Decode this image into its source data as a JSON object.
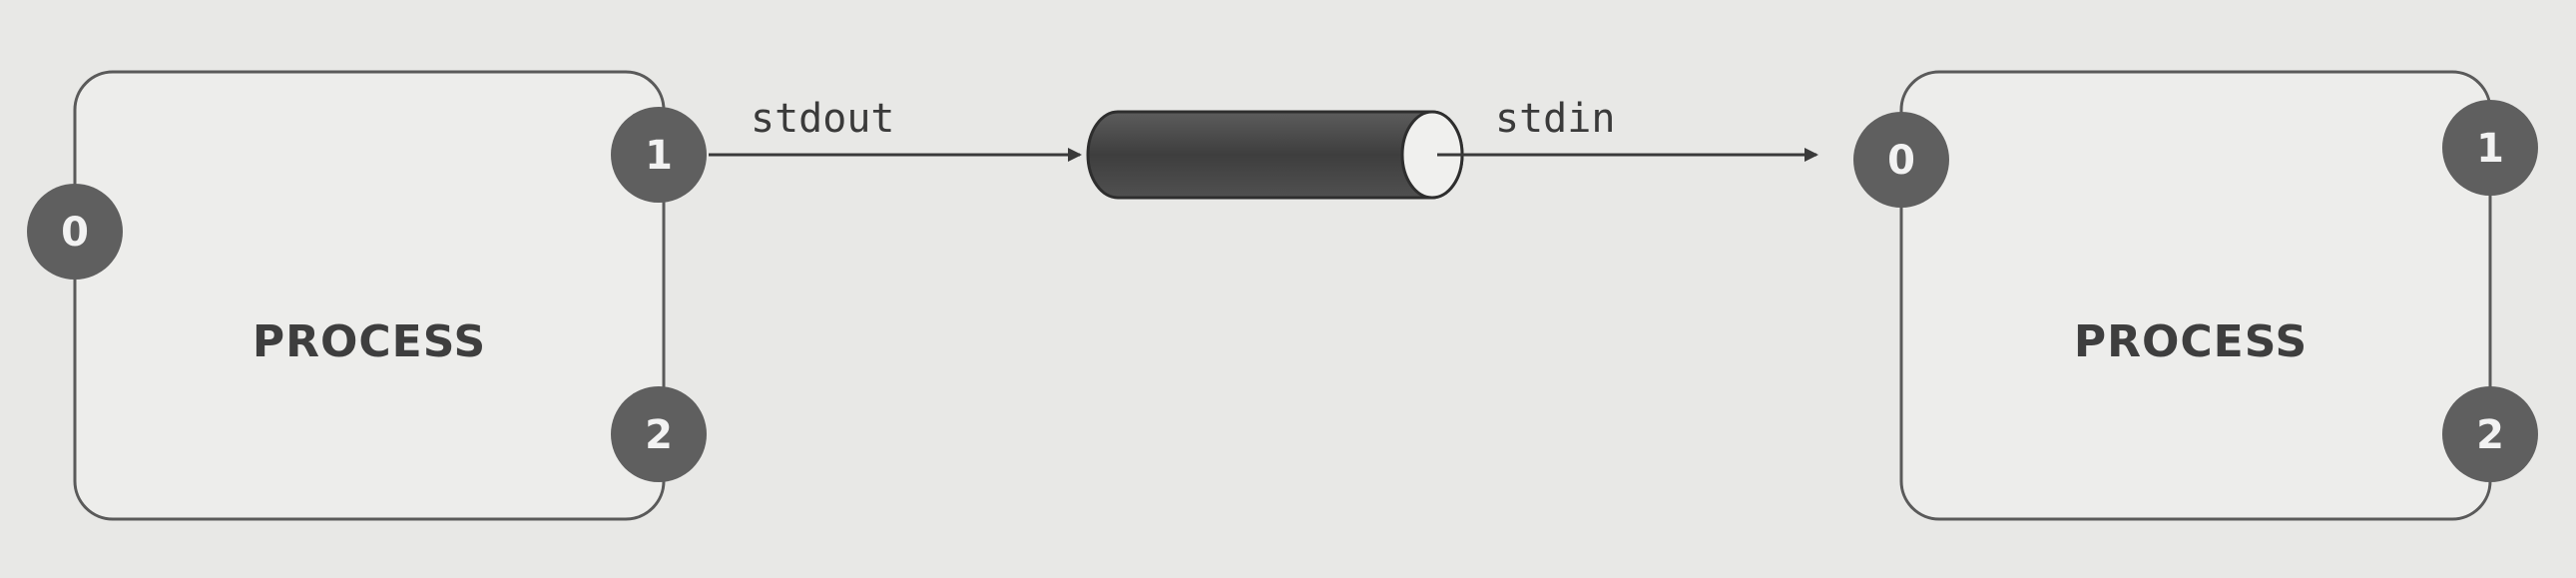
{
  "diagram": {
    "left_process": {
      "label": "PROCESS",
      "fd_stdin": "0",
      "fd_stdout": "1",
      "fd_stderr": "2"
    },
    "right_process": {
      "label": "PROCESS",
      "fd_stdin": "0",
      "fd_stdout": "1",
      "fd_stderr": "2"
    },
    "flow": {
      "out_label": "stdout",
      "in_label": "stdin"
    },
    "colors": {
      "background": "#e8e8e6",
      "box_stroke": "#5a5a5a",
      "fd_circle": "#5f5f5f",
      "pipe_body": "#4a4a4a",
      "arrow": "#3a3a3a"
    }
  }
}
